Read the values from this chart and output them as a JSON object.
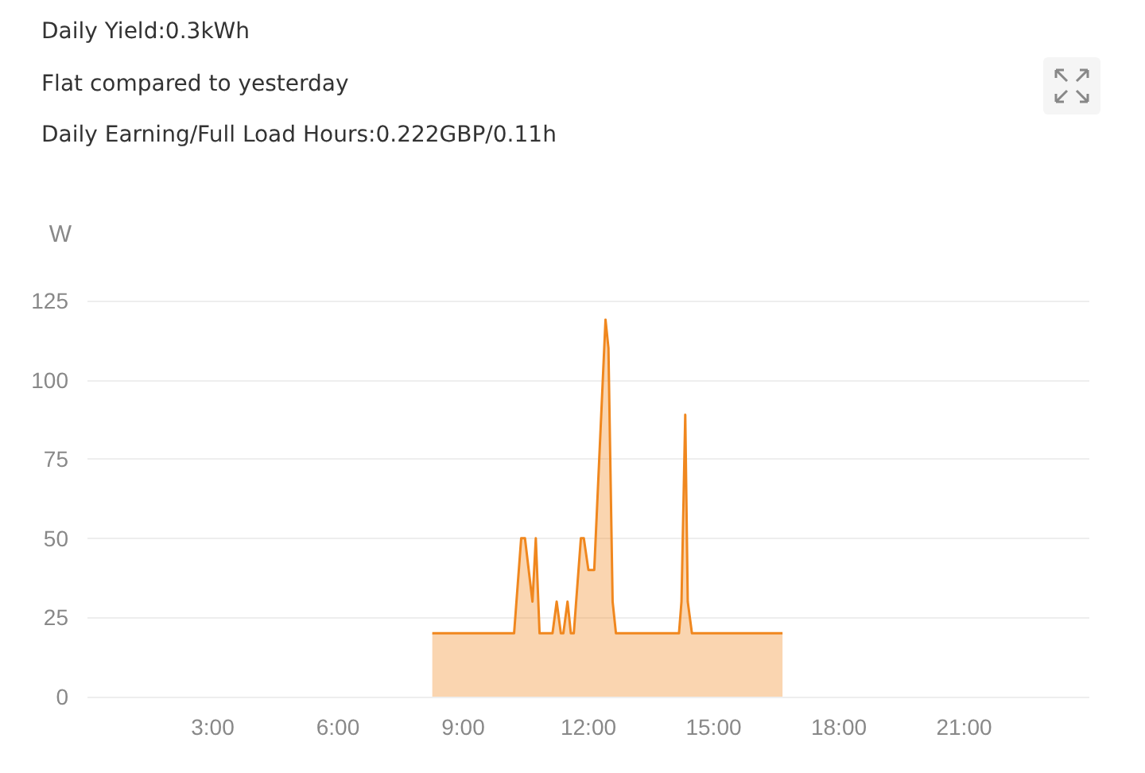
{
  "chart_data": {
    "type": "area",
    "title": "Daily Yield:0.3kWh",
    "subtitle": "Flat compared to yesterday",
    "annotations": [
      "Daily Earning/Full Load Hours:0.222GBP/0.11h"
    ],
    "ylabel": "W",
    "x": [
      8.26,
      10.22,
      10.39,
      10.48,
      10.66,
      10.74,
      10.83,
      11.14,
      11.24,
      11.34,
      11.4,
      11.5,
      11.58,
      11.65,
      11.82,
      11.89,
      12.0,
      12.14,
      12.41,
      12.48,
      12.58,
      12.66,
      14.17,
      14.23,
      14.32,
      14.38,
      14.48,
      16.65
    ],
    "series": [
      {
        "color": "#f0871e",
        "values": [
          20,
          20,
          50,
          50,
          30,
          50,
          20,
          20,
          30,
          20,
          20,
          30,
          20,
          20,
          50,
          50,
          40,
          40,
          119,
          110,
          30,
          20,
          20,
          30,
          89,
          30,
          20,
          20
        ]
      }
    ],
    "xlim": [
      0,
      24
    ],
    "xticks": [
      {
        "value": 3,
        "label": "3:00"
      },
      {
        "value": 6,
        "label": "6:00"
      },
      {
        "value": 9,
        "label": "9:00"
      },
      {
        "value": 12,
        "label": "12:00"
      },
      {
        "value": 15,
        "label": "15:00"
      },
      {
        "value": 18,
        "label": "18:00"
      },
      {
        "value": 21,
        "label": "21:00"
      }
    ],
    "ylim": [
      0,
      125
    ],
    "yticks": [
      0,
      25,
      50,
      75,
      100,
      125
    ],
    "grid": "y",
    "marker": "none",
    "line_style": "solid"
  }
}
